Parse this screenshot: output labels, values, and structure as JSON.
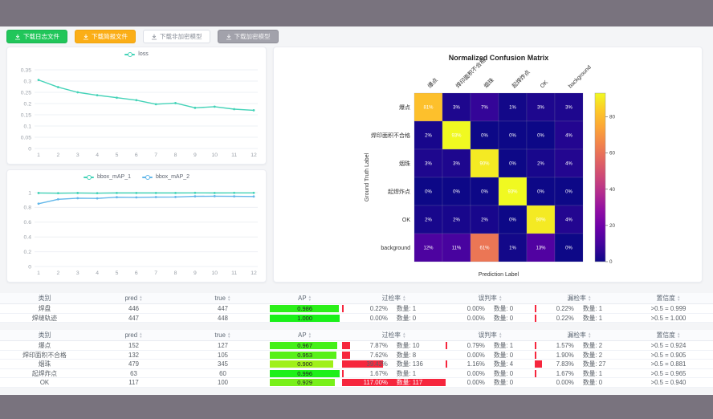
{
  "toolbar": {
    "buttons": [
      {
        "label": "下载日志文件",
        "variant": "green"
      },
      {
        "label": "下载简报文件",
        "variant": "orange"
      },
      {
        "label": "下载非加密模型",
        "variant": "white"
      },
      {
        "label": "下载加密模型",
        "variant": "gray"
      }
    ]
  },
  "colors": {
    "topbar": "#79737e",
    "teal": "#45d3b8",
    "blue": "#62b7ea",
    "bar_red": "#f6263d",
    "button_green": "#21c65a",
    "button_orange": "#fbae17"
  },
  "chart_data": [
    {
      "id": "loss",
      "type": "line",
      "x": [
        1,
        2,
        3,
        4,
        5,
        6,
        7,
        8,
        9,
        10,
        11,
        12
      ],
      "series": [
        {
          "name": "loss",
          "color": "#45d3b8",
          "values": [
            0.305,
            0.273,
            0.25,
            0.237,
            0.226,
            0.215,
            0.197,
            0.202,
            0.181,
            0.186,
            0.175,
            0.17
          ]
        }
      ],
      "ylim": [
        0,
        0.35
      ],
      "yticks": [
        "0",
        "0.05",
        "0.1",
        "0.15",
        "0.2",
        "0.25",
        "0.3",
        "0.35"
      ],
      "grid": true,
      "legend_position": "top"
    },
    {
      "id": "bbox_map",
      "type": "line",
      "x": [
        1,
        2,
        3,
        4,
        5,
        6,
        7,
        8,
        9,
        10,
        11,
        12
      ],
      "series": [
        {
          "name": "bbox_mAP_1",
          "color": "#45d3b8",
          "values": [
            0.995,
            0.993,
            0.995,
            0.993,
            0.996,
            0.996,
            0.996,
            0.996,
            0.997,
            0.996,
            0.997,
            0.997
          ]
        },
        {
          "name": "bbox_mAP_2",
          "color": "#62b7ea",
          "values": [
            0.85,
            0.91,
            0.925,
            0.922,
            0.938,
            0.936,
            0.94,
            0.941,
            0.95,
            0.952,
            0.95,
            0.948
          ]
        }
      ],
      "ylim": [
        0,
        1
      ],
      "yticks": [
        "0",
        "0.2",
        "0.4",
        "0.6",
        "0.8",
        "1"
      ],
      "grid": true,
      "legend_position": "top"
    },
    {
      "id": "confusion_matrix",
      "type": "heatmap",
      "title": "Normalized Confusion Matrix",
      "xlabel": "Prediction Label",
      "ylabel": "Ground Truth Label",
      "labels": [
        "爆点",
        "焊印面积不合格",
        "烟珠",
        "起焊炸点",
        "OK",
        "background"
      ],
      "values_percent": [
        [
          81,
          3,
          7,
          1,
          3,
          3
        ],
        [
          2,
          93,
          0,
          0,
          0,
          4
        ],
        [
          3,
          3,
          90,
          0,
          2,
          4
        ],
        [
          0,
          0,
          0,
          93,
          0,
          0
        ],
        [
          2,
          2,
          2,
          0,
          90,
          4
        ],
        [
          12,
          11,
          61,
          1,
          13,
          0
        ]
      ],
      "vmax": 93,
      "colorbar_ticks": [
        0,
        20,
        40,
        60,
        80
      ],
      "colormap": "plasma"
    }
  ],
  "tables": [
    {
      "headers": [
        {
          "label": "类别",
          "sortable": false
        },
        {
          "label": "pred",
          "sortable": true
        },
        {
          "label": "true",
          "sortable": true
        },
        {
          "label": "AP",
          "sortable": true
        },
        {
          "label": "过检率",
          "sortable": true
        },
        {
          "label": "误判率",
          "sortable": true
        },
        {
          "label": "漏检率",
          "sortable": true
        },
        {
          "label": "置信度",
          "sortable": true
        }
      ],
      "rows": [
        {
          "cat": "焊盘",
          "pred": "446",
          "true": "447",
          "ap": "0.986",
          "over": {
            "pct": "0.22%",
            "count": "数量: 1",
            "bar": 0.22
          },
          "mis": {
            "pct": "0.00%",
            "count": "数量: 0",
            "bar": 0
          },
          "miss": {
            "pct": "0.22%",
            "count": "数量: 1",
            "bar": 0.22
          },
          "conf": ">0.5 = 0.999"
        },
        {
          "cat": "焊缝轨迹",
          "pred": "447",
          "true": "448",
          "ap": "1.000",
          "over": {
            "pct": "0.00%",
            "count": "数量: 0",
            "bar": 0
          },
          "mis": {
            "pct": "0.00%",
            "count": "数量: 0",
            "bar": 0
          },
          "miss": {
            "pct": "0.22%",
            "count": "数量: 1",
            "bar": 0.22
          },
          "conf": ">0.5 = 1.000"
        }
      ]
    },
    {
      "headers": [
        {
          "label": "类别",
          "sortable": false
        },
        {
          "label": "pred",
          "sortable": true
        },
        {
          "label": "true",
          "sortable": true
        },
        {
          "label": "AP",
          "sortable": true
        },
        {
          "label": "过检率",
          "sortable": true
        },
        {
          "label": "误判率",
          "sortable": true
        },
        {
          "label": "漏检率",
          "sortable": true
        },
        {
          "label": "置信度",
          "sortable": true
        }
      ],
      "rows": [
        {
          "cat": "爆点",
          "pred": "152",
          "true": "127",
          "ap": "0.967",
          "over": {
            "pct": "7.87%",
            "count": "数量: 10",
            "bar": 7.87
          },
          "mis": {
            "pct": "0.79%",
            "count": "数量: 1",
            "bar": 0.79
          },
          "miss": {
            "pct": "1.57%",
            "count": "数量: 2",
            "bar": 1.57
          },
          "conf": ">0.5 = 0.924"
        },
        {
          "cat": "焊印面积不合格",
          "pred": "132",
          "true": "105",
          "ap": "0.953",
          "over": {
            "pct": "7.62%",
            "count": "数量: 8",
            "bar": 7.62
          },
          "mis": {
            "pct": "0.00%",
            "count": "数量: 0",
            "bar": 0
          },
          "miss": {
            "pct": "1.90%",
            "count": "数量: 2",
            "bar": 1.9
          },
          "conf": ">0.5 = 0.905"
        },
        {
          "cat": "烟珠",
          "pred": "479",
          "true": "345",
          "ap": "0.900",
          "over": {
            "pct": "39.42%",
            "count": "数量: 136",
            "bar": 39.42
          },
          "mis": {
            "pct": "1.16%",
            "count": "数量: 4",
            "bar": 1.16
          },
          "miss": {
            "pct": "7.83%",
            "count": "数量: 27",
            "bar": 7.83
          },
          "conf": ">0.5 = 0.881"
        },
        {
          "cat": "起焊炸点",
          "pred": "63",
          "true": "60",
          "ap": "0.996",
          "over": {
            "pct": "1.67%",
            "count": "数量: 1",
            "bar": 1.67
          },
          "mis": {
            "pct": "0.00%",
            "count": "数量: 0",
            "bar": 0
          },
          "miss": {
            "pct": "1.67%",
            "count": "数量: 1",
            "bar": 1.67
          },
          "conf": ">0.5 = 0.965"
        },
        {
          "cat": "OK",
          "pred": "117",
          "true": "100",
          "ap": "0.929",
          "over": {
            "pct": "117.00%",
            "count": "数量: 117",
            "bar": 117
          },
          "mis": {
            "pct": "0.00%",
            "count": "数量: 0",
            "bar": 0
          },
          "miss": {
            "pct": "0.00%",
            "count": "数量: 0",
            "bar": 0
          },
          "conf": ">0.5 = 0.940"
        }
      ]
    }
  ]
}
